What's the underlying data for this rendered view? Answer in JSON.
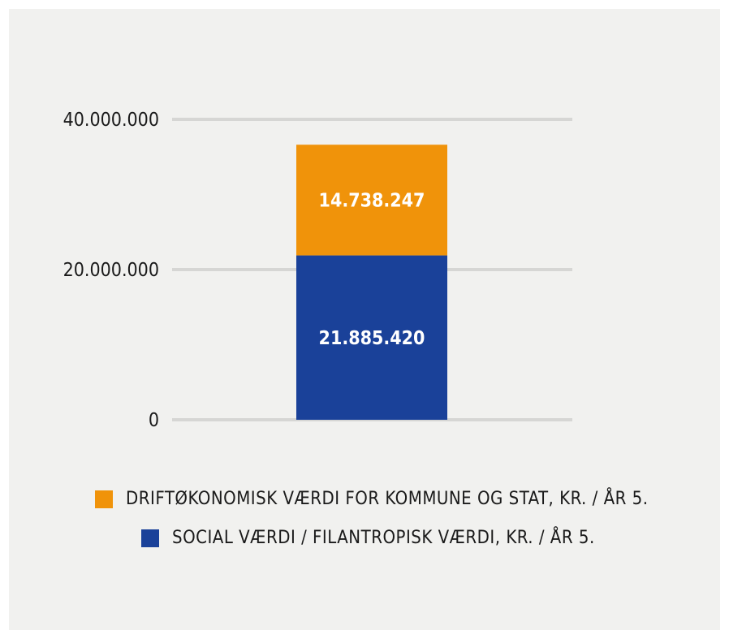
{
  "chart_data": {
    "type": "bar",
    "stacked": true,
    "categories": [
      ""
    ],
    "series": [
      {
        "name": "SOCIAL VÆRDI / FILANTROPISK VÆRDI, KR. / ÅR 5.",
        "values": [
          21885420
        ],
        "label": "21.885.420",
        "color": "#1a4199"
      },
      {
        "name": "DRIFTØKONOMISK VÆRDI FOR KOMMUNE OG STAT, KR. / ÅR 5.",
        "values": [
          14738247
        ],
        "label": "14.738.247",
        "color": "#f0930a"
      }
    ],
    "ylim": [
      0,
      40000000
    ],
    "yticks": [
      0,
      20000000,
      40000000
    ],
    "ytick_labels": [
      "0",
      "20.000.000",
      "40.000.000"
    ],
    "grid": true,
    "legend_position": "bottom",
    "legend_order": [
      1,
      0
    ]
  },
  "colors": {
    "background": "#f1f1ef",
    "grid": "#d6d6d4"
  }
}
